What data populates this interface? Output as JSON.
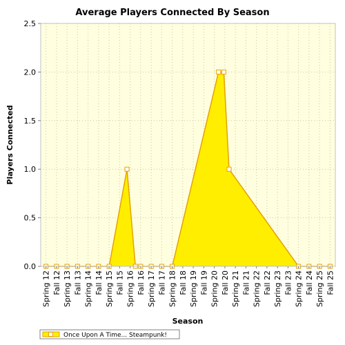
{
  "colors": {
    "background": "#ffffff",
    "plot_background": "#ffffe0",
    "gridline": "#c8c8a0",
    "area_fill": "#ffee00",
    "line": "#e6a100",
    "marker_fill": "#ffffff",
    "marker_stroke": "#e6a100"
  },
  "chart_data": {
    "type": "area",
    "title": "Average Players Connected By Season",
    "xlabel": "Season",
    "ylabel": "Players Connected",
    "ylim": [
      0,
      2.5
    ],
    "yticks": [
      "0.0",
      "0.5",
      "1.0",
      "1.5",
      "2.0",
      "2.5"
    ],
    "grid": true,
    "legend_position": "bottom-left",
    "categories": [
      "Spring 12",
      "Fall 12",
      "Spring 13",
      "Fall 13",
      "Spring 14",
      "Fall 14",
      "Spring 15",
      "Fall 15",
      "Spring 16",
      "Fall 16",
      "Spring 17",
      "Fall 17",
      "Spring 18",
      "Fall 18",
      "Spring 19",
      "Fall 19",
      "Spring 20",
      "Fall 20",
      "Spring 21",
      "Fall 21",
      "Spring 22",
      "Fall 22",
      "Spring 23",
      "Fall 23",
      "Spring 24",
      "Fall 24",
      "Spring 25",
      "Fall 25"
    ],
    "series": [
      {
        "name": "Once Upon A Time... Steampunk!",
        "values": [
          0,
          0,
          0,
          0,
          0,
          0,
          0,
          0,
          0,
          0,
          0,
          0,
          0,
          0,
          0,
          0,
          0,
          0,
          0,
          0,
          0,
          0,
          0,
          0,
          0,
          0,
          0,
          0
        ],
        "points": [
          {
            "x": 0,
            "y": 0
          },
          {
            "x": 1,
            "y": 0
          },
          {
            "x": 2,
            "y": 0
          },
          {
            "x": 3,
            "y": 0
          },
          {
            "x": 4,
            "y": 0
          },
          {
            "x": 5,
            "y": 0
          },
          {
            "x": 6,
            "y": 0
          },
          {
            "x": 7.7,
            "y": 1
          },
          {
            "x": 8.5,
            "y": 0
          },
          {
            "x": 9,
            "y": 0
          },
          {
            "x": 10,
            "y": 0
          },
          {
            "x": 11,
            "y": 0
          },
          {
            "x": 12,
            "y": 0
          },
          {
            "x": 16.4,
            "y": 2
          },
          {
            "x": 16.9,
            "y": 2
          },
          {
            "x": 17.4,
            "y": 1
          },
          {
            "x": 24.0,
            "y": 0
          },
          {
            "x": 25,
            "y": 0
          },
          {
            "x": 26,
            "y": 0
          },
          {
            "x": 27,
            "y": 0
          }
        ]
      }
    ]
  }
}
